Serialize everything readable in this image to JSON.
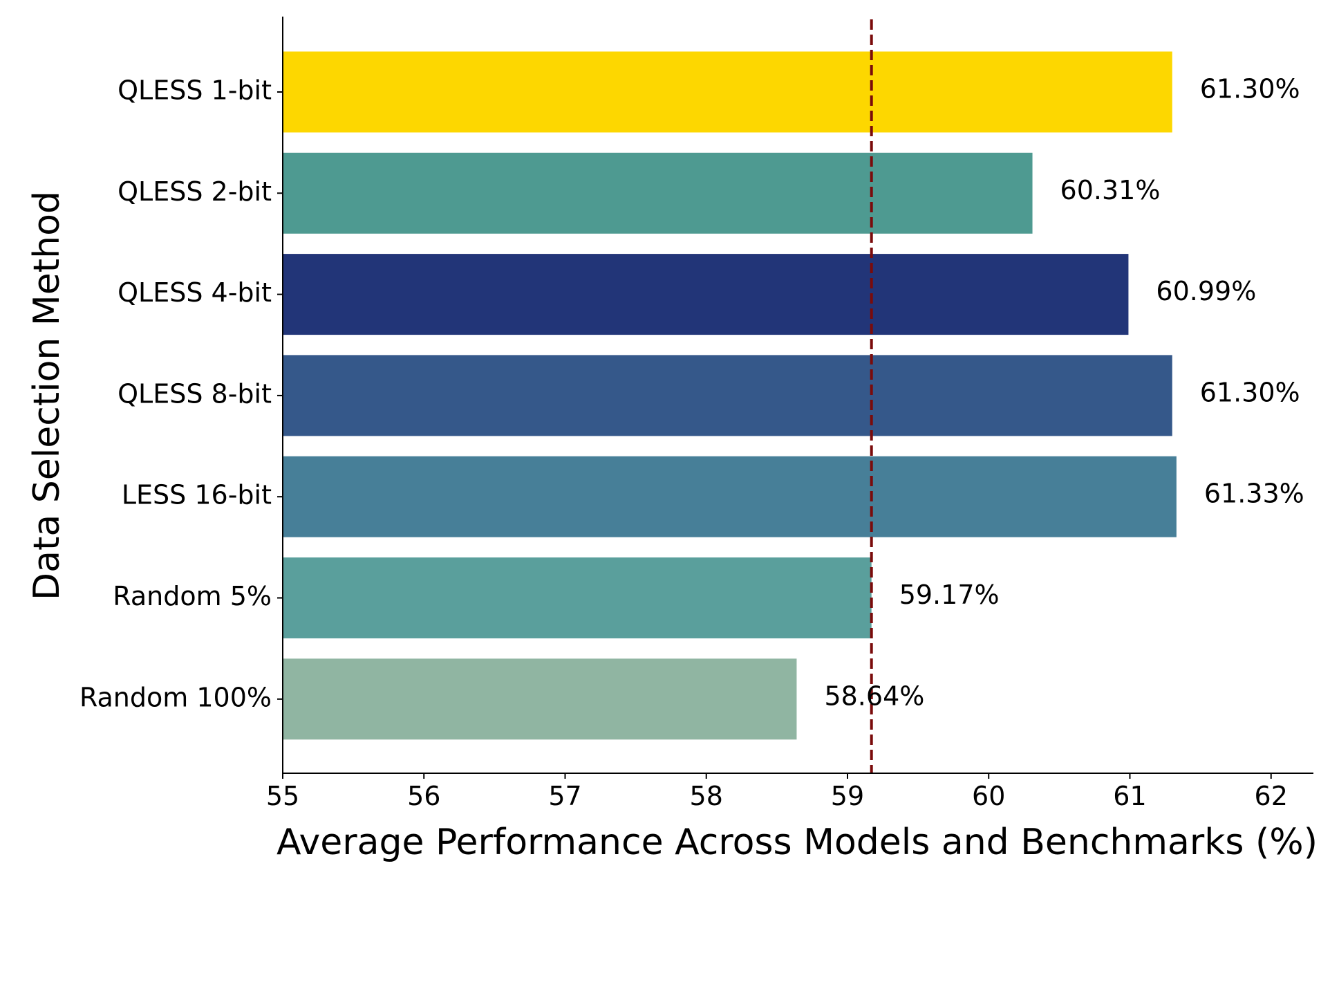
{
  "chart_data": {
    "type": "bar",
    "orientation": "horizontal",
    "xlabel": "Average Performance Across Models and Benchmarks (%)",
    "ylabel": "Data Selection Method",
    "xlim": [
      55,
      62.3
    ],
    "xticks": [
      55,
      56,
      57,
      58,
      59,
      60,
      61,
      62
    ],
    "categories": [
      "QLESS 1-bit",
      "QLESS 2-bit",
      "QLESS 4-bit",
      "QLESS 8-bit",
      "LESS 16-bit",
      "Random 5%",
      "Random 100%"
    ],
    "values": [
      61.3,
      60.31,
      60.99,
      61.3,
      61.33,
      59.17,
      58.64
    ],
    "value_labels": [
      "61.30%",
      "60.31%",
      "60.99%",
      "61.30%",
      "61.33%",
      "59.17%",
      "58.64%"
    ],
    "colors": [
      "#fdd700",
      "#4e9a91",
      "#223578",
      "#35588a",
      "#477f98",
      "#5a9f9c",
      "#90b5a2"
    ],
    "reference_line": {
      "value": 59.17,
      "color": "#7a0b0b",
      "style": "dashed"
    },
    "grid": false,
    "legend": "none"
  }
}
